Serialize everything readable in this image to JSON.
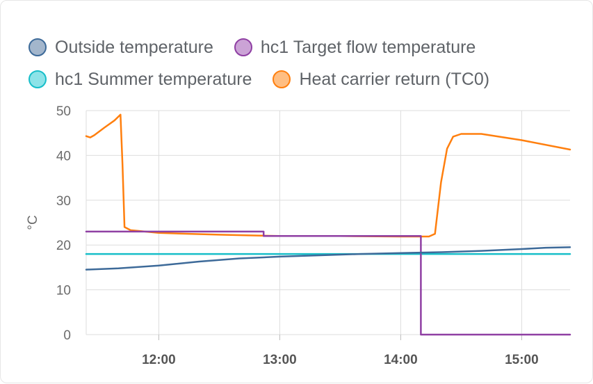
{
  "chart_data": {
    "type": "line",
    "ylabel": "°C",
    "ylim": [
      0,
      50
    ],
    "y_ticks": [
      0,
      10,
      20,
      30,
      40,
      50
    ],
    "x_range": [
      "11:24",
      "15:24"
    ],
    "x_ticks": [
      "12:00",
      "13:00",
      "14:00",
      "15:00"
    ],
    "grid": true,
    "legend_position": "top",
    "series": [
      {
        "name": "Outside temperature",
        "color": "#3d6a99",
        "swatch_fill": "#a3b6cc",
        "points": [
          [
            "11:24",
            14.5
          ],
          [
            "11:40",
            14.8
          ],
          [
            "12:00",
            15.4
          ],
          [
            "12:20",
            16.3
          ],
          [
            "12:40",
            17.0
          ],
          [
            "13:00",
            17.4
          ],
          [
            "13:20",
            17.7
          ],
          [
            "13:40",
            18.0
          ],
          [
            "14:00",
            18.2
          ],
          [
            "14:20",
            18.4
          ],
          [
            "14:40",
            18.7
          ],
          [
            "15:00",
            19.1
          ],
          [
            "15:12",
            19.4
          ],
          [
            "15:24",
            19.5
          ]
        ],
        "step": false
      },
      {
        "name": "hc1 Target flow temperature",
        "color": "#8f3fa3",
        "swatch_fill": "#cba3d6",
        "points": [
          [
            "11:24",
            23
          ],
          [
            "12:52",
            23
          ],
          [
            "12:52",
            22
          ],
          [
            "14:10",
            22
          ],
          [
            "14:10",
            0
          ],
          [
            "15:24",
            0
          ]
        ],
        "step": true
      },
      {
        "name": "hc1 Summer temperature",
        "color": "#17bec9",
        "swatch_fill": "#8de3e8",
        "points": [
          [
            "11:24",
            18
          ],
          [
            "15:24",
            18
          ]
        ],
        "step": false
      },
      {
        "name": "Heat carrier return (TC0)",
        "color": "#ff7f0e",
        "swatch_fill": "#ffbe82",
        "points": [
          [
            "11:24",
            44.3
          ],
          [
            "11:26",
            44.0
          ],
          [
            "11:28",
            44.5
          ],
          [
            "11:33",
            46.2
          ],
          [
            "11:38",
            47.8
          ],
          [
            "11:41",
            49.1
          ],
          [
            "11:42",
            38.0
          ],
          [
            "11:43",
            24.0
          ],
          [
            "11:46",
            23.3
          ],
          [
            "12:00",
            22.7
          ],
          [
            "12:30",
            22.3
          ],
          [
            "13:00",
            22.0
          ],
          [
            "13:30",
            22.0
          ],
          [
            "14:00",
            21.9
          ],
          [
            "14:14",
            21.9
          ],
          [
            "14:17",
            22.5
          ],
          [
            "14:20",
            34.0
          ],
          [
            "14:23",
            41.5
          ],
          [
            "14:26",
            44.2
          ],
          [
            "14:30",
            44.8
          ],
          [
            "14:40",
            44.8
          ],
          [
            "15:00",
            43.4
          ],
          [
            "15:24",
            41.3
          ]
        ],
        "step": false
      }
    ]
  }
}
